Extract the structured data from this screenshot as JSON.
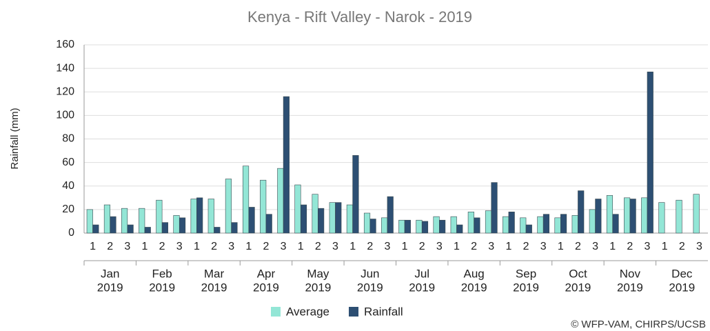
{
  "chart_data": {
    "type": "bar",
    "title": "Kenya - Rift Valley - Narok - 2019",
    "y_label": "Rainfall (mm)",
    "credit": "© WFP-VAM, CHIRPS/UCSB",
    "categories": [
      "1",
      "2",
      "3",
      "1",
      "2",
      "3",
      "1",
      "2",
      "3",
      "1",
      "2",
      "3",
      "1",
      "2",
      "3",
      "1",
      "2",
      "3",
      "1",
      "2",
      "3",
      "1",
      "2",
      "3",
      "1",
      "2",
      "3",
      "1",
      "2",
      "3",
      "1",
      "2",
      "3",
      "1",
      "2",
      "3"
    ],
    "groups": [
      {
        "month": "Jan",
        "year": "2019"
      },
      {
        "month": "Feb",
        "year": "2019"
      },
      {
        "month": "Mar",
        "year": "2019"
      },
      {
        "month": "Apr",
        "year": "2019"
      },
      {
        "month": "May",
        "year": "2019"
      },
      {
        "month": "Jun",
        "year": "2019"
      },
      {
        "month": "Jul",
        "year": "2019"
      },
      {
        "month": "Aug",
        "year": "2019"
      },
      {
        "month": "Sep",
        "year": "2019"
      },
      {
        "month": "Oct",
        "year": "2019"
      },
      {
        "month": "Nov",
        "year": "2019"
      },
      {
        "month": "Dec",
        "year": "2019"
      }
    ],
    "series": [
      {
        "name": "Average",
        "color": "#93e6d6",
        "values": [
          20,
          24,
          21,
          21,
          28,
          15,
          29,
          29,
          46,
          57,
          45,
          55,
          41,
          33,
          26,
          24,
          17,
          13,
          11,
          11,
          14,
          14,
          18,
          19,
          14,
          13,
          14,
          13,
          15,
          20,
          32,
          30,
          30,
          26,
          28,
          33
        ]
      },
      {
        "name": "Rainfall",
        "color": "#2d4f73",
        "values": [
          7,
          14,
          7,
          5,
          9,
          13,
          30,
          5,
          9,
          22,
          16,
          116,
          24,
          21,
          26,
          66,
          12,
          31,
          11,
          10,
          11,
          7,
          13,
          43,
          18,
          7,
          16,
          16,
          36,
          29,
          16,
          29,
          137,
          null,
          null,
          null
        ]
      }
    ],
    "ylim": [
      0,
      160
    ],
    "yticks": [
      0,
      20,
      40,
      60,
      80,
      100,
      120,
      140,
      160
    ],
    "grid": true
  }
}
